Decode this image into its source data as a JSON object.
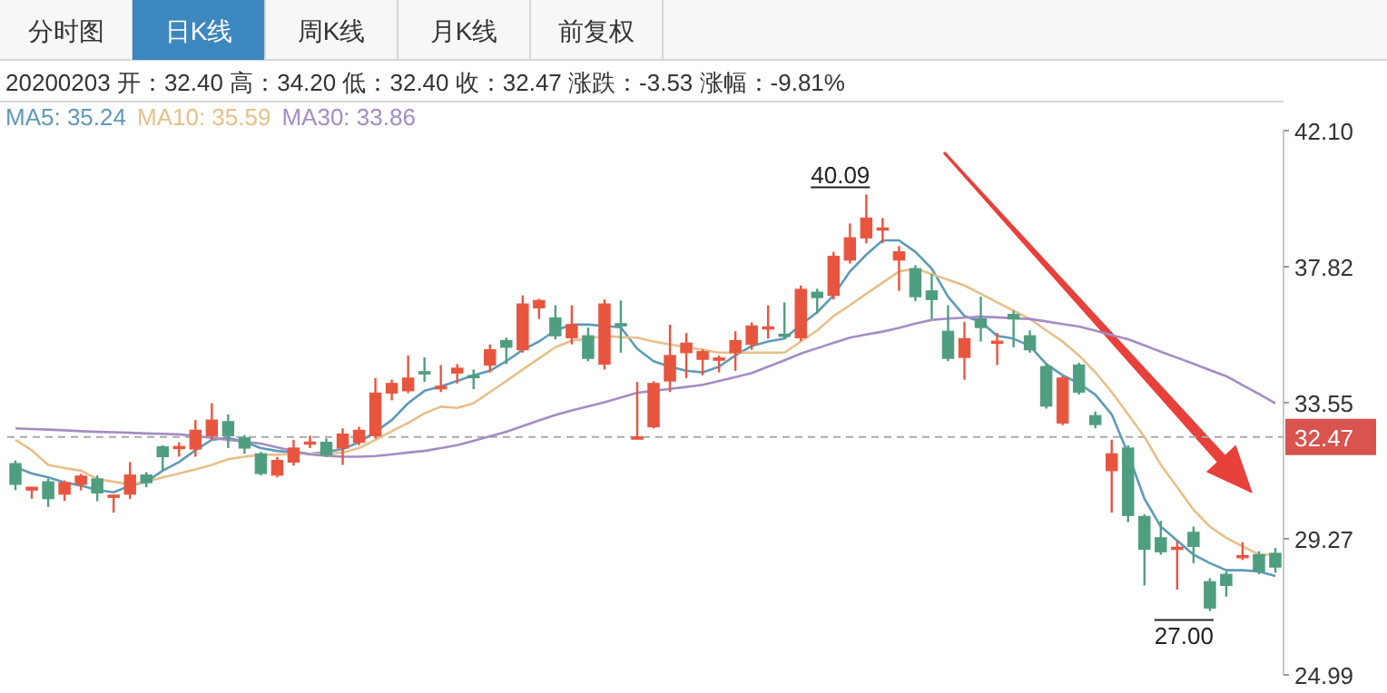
{
  "chart_data": {
    "type": "candlestick",
    "subtitle": "20200203 开：32.40 高：34.20 低：32.40 收：32.47 涨跌：-3.53 涨幅：-9.81%",
    "annotations": [
      "分时图",
      "日K线",
      "周K线",
      "月K线",
      "前复权",
      "40.09",
      "27.00"
    ],
    "categories": [
      null,
      null,
      null,
      null,
      null,
      null,
      null,
      null,
      null,
      null,
      null,
      null,
      null,
      null,
      null,
      null,
      null,
      null,
      null,
      null,
      null,
      null,
      null,
      null,
      null,
      null,
      null,
      null,
      null,
      null,
      null,
      null,
      null,
      null,
      null,
      null,
      null,
      null,
      null,
      null,
      null,
      null,
      null,
      null,
      null,
      null,
      null,
      null,
      null,
      null,
      null,
      null,
      null,
      null,
      null,
      null,
      null,
      null,
      null,
      null,
      null,
      null,
      null,
      null,
      null,
      null,
      null,
      null,
      null,
      null,
      null,
      null,
      null,
      null,
      null,
      null,
      null,
      null
    ],
    "ohlc": [
      [
        31.63,
        31.73,
        30.8,
        30.98
      ],
      [
        30.8,
        30.89,
        30.53,
        30.89
      ],
      [
        31.06,
        31.15,
        30.27,
        30.53
      ],
      [
        30.67,
        31.1,
        30.46,
        31.03
      ],
      [
        30.98,
        31.31,
        30.79,
        31.24
      ],
      [
        31.15,
        31.26,
        30.45,
        30.71
      ],
      [
        30.62,
        30.65,
        30.09,
        30.64
      ],
      [
        30.67,
        31.68,
        30.52,
        31.27
      ],
      [
        31.27,
        31.36,
        30.89,
        31.03
      ],
      [
        32.16,
        32.21,
        31.41,
        31.85
      ],
      [
        32.15,
        32.3,
        31.85,
        32.17
      ],
      [
        32.09,
        33.0,
        31.85,
        32.68
      ],
      [
        32.51,
        33.53,
        32.37,
        33.0
      ],
      [
        32.95,
        33.18,
        32.12,
        32.51
      ],
      [
        32.44,
        32.53,
        31.94,
        32.12
      ],
      [
        31.94,
        32.0,
        31.26,
        31.32
      ],
      [
        31.27,
        31.84,
        31.2,
        31.73
      ],
      [
        31.68,
        32.38,
        31.57,
        32.12
      ],
      [
        32.29,
        32.51,
        32.12,
        32.31
      ],
      [
        32.3,
        32.42,
        31.84,
        31.91
      ],
      [
        32.12,
        32.74,
        31.59,
        32.56
      ],
      [
        32.3,
        32.79,
        32.21,
        32.68
      ],
      [
        32.51,
        34.32,
        32.42,
        33.85
      ],
      [
        33.85,
        34.27,
        33.62,
        34.15
      ],
      [
        33.92,
        35.03,
        33.85,
        34.32
      ],
      [
        34.52,
        34.97,
        34.2,
        34.48
      ],
      [
        33.98,
        34.73,
        33.88,
        34.06
      ],
      [
        34.48,
        34.76,
        34.15,
        34.63
      ],
      [
        34.4,
        34.59,
        33.97,
        34.36
      ],
      [
        34.73,
        35.38,
        34.5,
        35.21
      ],
      [
        35.5,
        35.59,
        34.76,
        35.29
      ],
      [
        35.21,
        36.92,
        35.12,
        36.65
      ],
      [
        36.53,
        36.81,
        36.18,
        36.76
      ],
      [
        36.21,
        36.61,
        35.54,
        35.65
      ],
      [
        35.59,
        36.61,
        35.38,
        36.0
      ],
      [
        35.65,
        35.91,
        34.85,
        34.94
      ],
      [
        34.76,
        36.79,
        34.59,
        36.65
      ],
      [
        36.03,
        36.76,
        35.12,
        36.0
      ],
      [
        32.4,
        34.2,
        32.4,
        32.47
      ],
      [
        32.79,
        34.22,
        32.74,
        34.15
      ],
      [
        34.23,
        36.0,
        33.88,
        35.03
      ],
      [
        35.12,
        35.74,
        34.32,
        35.42
      ],
      [
        34.91,
        35.22,
        34.41,
        35.15
      ],
      [
        34.93,
        35.03,
        34.5,
        34.95
      ],
      [
        35.12,
        35.79,
        34.55,
        35.5
      ],
      [
        35.38,
        36.07,
        35.21,
        35.96
      ],
      [
        35.89,
        36.61,
        35.56,
        35.93
      ],
      [
        35.7,
        36.7,
        35.56,
        35.66
      ],
      [
        35.59,
        37.23,
        35.49,
        37.11
      ],
      [
        37.02,
        37.13,
        36.35,
        36.85
      ],
      [
        36.92,
        38.29,
        36.79,
        38.15
      ],
      [
        38.03,
        39.18,
        37.92,
        38.73
      ],
      [
        38.73,
        40.09,
        38.56,
        39.35
      ],
      [
        39.01,
        39.35,
        38.56,
        39.04
      ],
      [
        38.03,
        38.47,
        37.06,
        38.29
      ],
      [
        37.76,
        37.87,
        36.74,
        36.88
      ],
      [
        37.06,
        37.59,
        36.18,
        36.79
      ],
      [
        35.79,
        36.61,
        34.85,
        34.94
      ],
      [
        34.97,
        36.09,
        34.27,
        35.56
      ],
      [
        36.18,
        36.88,
        35.47,
        35.91
      ],
      [
        35.45,
        35.74,
        34.73,
        35.48
      ],
      [
        36.32,
        36.44,
        35.29,
        36.18
      ],
      [
        35.65,
        35.82,
        35.12,
        35.21
      ],
      [
        34.68,
        34.8,
        33.36,
        33.44
      ],
      [
        32.91,
        34.38,
        32.84,
        34.32
      ],
      [
        34.73,
        34.8,
        33.8,
        33.88
      ],
      [
        33.14,
        33.27,
        32.74,
        32.86
      ],
      [
        31.41,
        32.38,
        30.09,
        31.94
      ],
      [
        32.12,
        32.21,
        29.79,
        30.0
      ],
      [
        29.97,
        30.04,
        27.8,
        28.94
      ],
      [
        29.3,
        29.83,
        28.77,
        28.86
      ],
      [
        28.97,
        29.21,
        27.67,
        29.0
      ],
      [
        29.47,
        29.65,
        28.5,
        29.03
      ],
      [
        27.92,
        28.03,
        27.0,
        27.09
      ],
      [
        28.15,
        28.24,
        27.45,
        27.8
      ],
      [
        28.7,
        29.16,
        28.6,
        28.74
      ],
      [
        28.77,
        28.88,
        28.15,
        28.24
      ],
      [
        28.81,
        28.98,
        28.2,
        28.38
      ]
    ],
    "colors": [
      "#4f9e7f",
      "#e8553f",
      "#4f9e7f",
      "#e8553f",
      "#e8553f",
      "#4f9e7f",
      "#e8553f",
      "#e8553f",
      "#4f9e7f",
      "#4f9e7f",
      "#e8553f",
      "#e8553f",
      "#e8553f",
      "#4f9e7f",
      "#4f9e7f",
      "#4f9e7f",
      "#e8553f",
      "#e8553f",
      "#e8553f",
      "#4f9e7f",
      "#e8553f",
      "#e8553f",
      "#e8553f",
      "#e8553f",
      "#e8553f",
      "#4f9e7f",
      "#e8553f",
      "#e8553f",
      "#4f9e7f",
      "#e8553f",
      "#4f9e7f",
      "#e8553f",
      "#e8553f",
      "#4f9e7f",
      "#e8553f",
      "#4f9e7f",
      "#e8553f",
      "#4f9e7f",
      "#e8553f",
      "#e8553f",
      "#e8553f",
      "#e8553f",
      "#e8553f",
      "#e8553f",
      "#e8553f",
      "#e8553f",
      "#e8553f",
      "#4f9e7f",
      "#e8553f",
      "#4f9e7f",
      "#e8553f",
      "#e8553f",
      "#e8553f",
      "#e8553f",
      "#e8553f",
      "#4f9e7f",
      "#4f9e7f",
      "#4f9e7f",
      "#e8553f",
      "#4f9e7f",
      "#e8553f",
      "#4f9e7f",
      "#4f9e7f",
      "#4f9e7f",
      "#e8553f",
      "#4f9e7f",
      "#4f9e7f",
      "#e8553f",
      "#4f9e7f",
      "#4f9e7f",
      "#4f9e7f",
      "#e8553f",
      "#4f9e7f",
      "#4f9e7f",
      "#4f9e7f",
      "#e8553f",
      "#4f9e7f",
      "#4f9e7f"
    ],
    "series": [
      {
        "name": "MA5: 35.24",
        "type": "line",
        "color": "#5e9ab8",
        "values": [
          31.52,
          31.32,
          31.2,
          31.04,
          30.94,
          30.8,
          30.73,
          30.94,
          31.06,
          31.41,
          31.68,
          32.05,
          32.38,
          32.44,
          32.31,
          32.12,
          32.03,
          31.98,
          31.94,
          32.0,
          32.09,
          32.3,
          32.63,
          33.0,
          33.53,
          33.92,
          34.06,
          34.23,
          34.41,
          34.55,
          34.85,
          35.21,
          35.47,
          35.82,
          36.0,
          36.0,
          35.96,
          35.91,
          35.24,
          34.85,
          34.68,
          34.55,
          34.5,
          34.68,
          35.03,
          35.33,
          35.47,
          35.56,
          36.0,
          36.39,
          36.92,
          37.67,
          38.2,
          38.65,
          38.65,
          38.29,
          37.76,
          36.88,
          36.27,
          36.09,
          35.65,
          35.56,
          35.33,
          34.76,
          34.41,
          34.15,
          33.8,
          33.18,
          31.94,
          30.53,
          29.65,
          29.21,
          28.77,
          28.5,
          28.28,
          28.28,
          28.24,
          28.1
        ]
      },
      {
        "name": "MA10: 35.59",
        "type": "line",
        "color": "#e6c08a",
        "values": [
          32.38,
          32.05,
          31.59,
          31.49,
          31.41,
          31.15,
          31.06,
          30.98,
          31.06,
          31.2,
          31.32,
          31.45,
          31.59,
          31.77,
          31.85,
          31.91,
          31.91,
          31.94,
          31.94,
          31.94,
          31.98,
          32.12,
          32.38,
          32.65,
          32.91,
          33.21,
          33.42,
          33.38,
          33.53,
          33.88,
          34.23,
          34.59,
          34.94,
          35.29,
          35.5,
          35.56,
          35.65,
          35.61,
          35.59,
          35.47,
          35.38,
          35.29,
          35.21,
          35.12,
          35.12,
          35.12,
          35.12,
          35.12,
          35.47,
          35.82,
          36.27,
          36.61,
          36.97,
          37.32,
          37.67,
          37.76,
          37.59,
          37.41,
          37.23,
          36.97,
          36.7,
          36.44,
          36.18,
          35.82,
          35.47,
          35.03,
          34.5,
          33.88,
          33.18,
          32.47,
          31.59,
          30.89,
          30.18,
          29.65,
          29.3,
          29.03,
          28.77,
          28.77
        ]
      },
      {
        "name": "MA30: 33.86",
        "type": "line",
        "color": "#a58cc4",
        "values": [
          32.74,
          32.72,
          32.7,
          32.68,
          32.65,
          32.63,
          32.62,
          32.6,
          32.58,
          32.57,
          32.55,
          32.5,
          32.44,
          32.38,
          32.32,
          32.26,
          32.14,
          32.03,
          31.92,
          31.88,
          31.85,
          31.85,
          31.87,
          31.92,
          31.98,
          32.03,
          32.12,
          32.21,
          32.35,
          32.49,
          32.63,
          32.81,
          32.99,
          33.16,
          33.3,
          33.43,
          33.56,
          33.71,
          33.86,
          33.92,
          33.98,
          34.04,
          34.11,
          34.23,
          34.35,
          34.48,
          34.68,
          34.88,
          35.09,
          35.26,
          35.43,
          35.59,
          35.69,
          35.78,
          35.9,
          36.03,
          36.15,
          36.19,
          36.22,
          36.25,
          36.23,
          36.2,
          36.18,
          36.1,
          36.02,
          35.94,
          35.81,
          35.67,
          35.54,
          35.35,
          35.15,
          34.96,
          34.77,
          34.57,
          34.38,
          34.1,
          33.82,
          33.53
        ]
      }
    ],
    "ylim": [
      24.99,
      42.1
    ],
    "yticks": [
      {
        "value": 42.1,
        "label": "42.10"
      },
      {
        "value": 37.82,
        "label": "37.82"
      },
      {
        "value": 33.55,
        "label": "33.55"
      },
      {
        "value": 29.27,
        "label": "29.27"
      },
      {
        "value": 24.99,
        "label": "24.99"
      }
    ],
    "ref_lines": [
      {
        "axis": "y",
        "value": 32.47,
        "label": "32.47",
        "line_style": "dashed"
      }
    ],
    "legend": "top left"
  }
}
